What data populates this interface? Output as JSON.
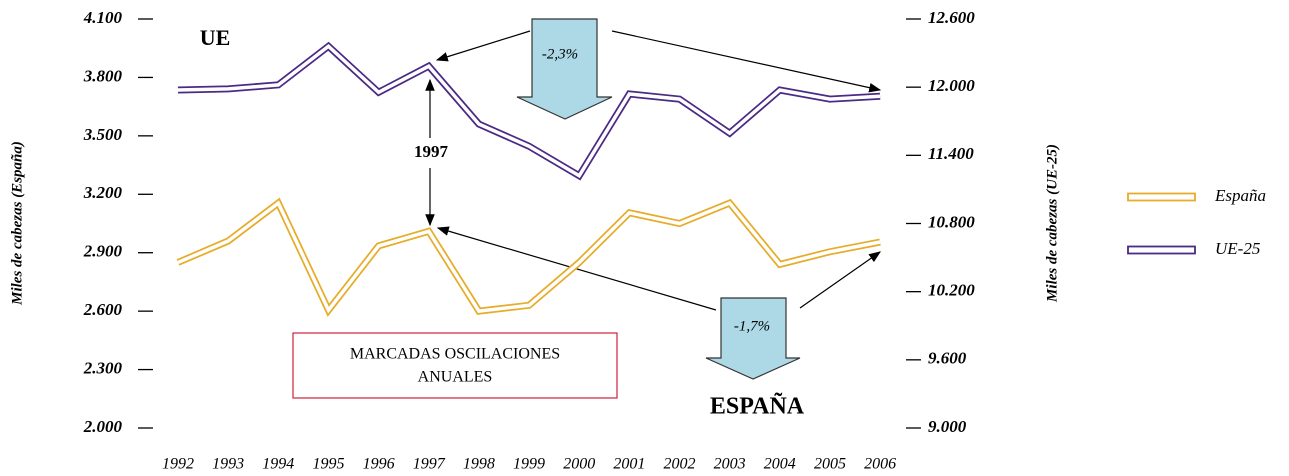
{
  "chart_data": {
    "type": "line",
    "categories": [
      "1992",
      "1993",
      "1994",
      "1995",
      "1996",
      "1997",
      "1998",
      "1999",
      "2000",
      "2001",
      "2002",
      "2003",
      "2004",
      "2005",
      "2006"
    ],
    "series": [
      {
        "name": "España",
        "color": "#e6ac2a",
        "values": [
          2850,
          2960,
          3155,
          2605,
          2935,
          3010,
          2600,
          2630,
          2850,
          3105,
          3050,
          3155,
          2840,
          2905,
          2955
        ]
      },
      {
        "name": "UE-25",
        "color": "#4b2a85",
        "axis": "y2",
        "values": [
          11975,
          11985,
          12020,
          12360,
          11955,
          12185,
          11675,
          11480,
          11220,
          11940,
          11895,
          11595,
          11975,
          11895,
          11920
        ]
      }
    ],
    "ylabel": "Miles de cabezas (España)",
    "y2label": "Miles de cabezas (UE-25)",
    "ylim": [
      2000,
      4100
    ],
    "yticks": [
      {
        "value": 2000,
        "label": "2.000"
      },
      {
        "value": 2300,
        "label": "2.300"
      },
      {
        "value": 2600,
        "label": "2.600"
      },
      {
        "value": 2900,
        "label": "2.900"
      },
      {
        "value": 3200,
        "label": "3.200"
      },
      {
        "value": 3500,
        "label": "3.500"
      },
      {
        "value": 3800,
        "label": "3.800"
      },
      {
        "value": 4100,
        "label": "4.100"
      }
    ],
    "y2lim": [
      9000,
      12600
    ],
    "y2ticks": [
      {
        "value": 9000,
        "label": "9.000"
      },
      {
        "value": 9600,
        "label": "9.600"
      },
      {
        "value": 10200,
        "label": "10.200"
      },
      {
        "value": 10800,
        "label": "10.800"
      },
      {
        "value": 11400,
        "label": "11.400"
      },
      {
        "value": 12000,
        "label": "12.000"
      },
      {
        "value": 12600,
        "label": "12.600"
      }
    ],
    "legend": "right",
    "annotations": [
      "UE",
      "-2,3%",
      "1997",
      "MARCADAS OSCILACIONES",
      "ANUALES",
      "-1,7%",
      "ESPAÑA"
    ]
  }
}
